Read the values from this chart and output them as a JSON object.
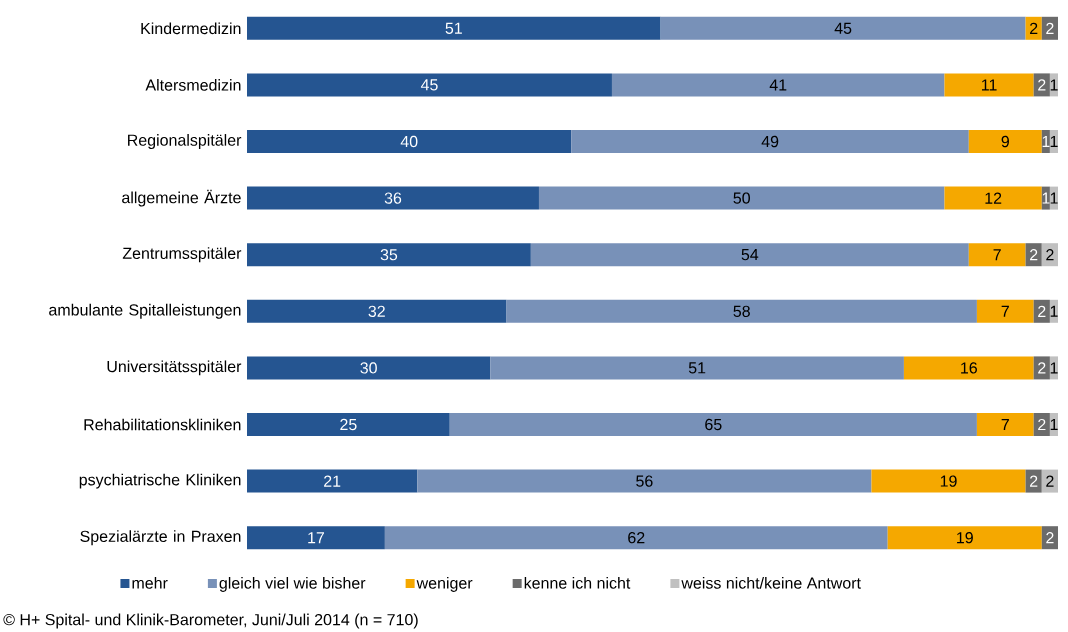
{
  "chart_data": {
    "type": "bar",
    "orientation": "horizontal",
    "stacked": true,
    "data_labels": true,
    "legend": "bottom",
    "tick_labels": "y",
    "categories": [
      "Kindermedizin",
      "Altersmedizin",
      "Regionalspitäler",
      "allgemeine Ärzte",
      "Zentrumsspitäler",
      "ambulante Spitalleistungen",
      "Universitätsspitäler",
      "Rehabilitationskliniken",
      "psychiatrische Kliniken",
      "Spezialärzte in Praxen"
    ],
    "series": [
      {
        "name": "mehr",
        "color": "#255591",
        "values": [
          51,
          45,
          40,
          36,
          35,
          32,
          30,
          25,
          21,
          17
        ]
      },
      {
        "name": "gleich viel wie bisher",
        "color": "#7891b8",
        "values": [
          45,
          41,
          49,
          50,
          54,
          58,
          51,
          65,
          56,
          62
        ]
      },
      {
        "name": "weniger",
        "color": "#f5a800",
        "values": [
          2,
          11,
          9,
          12,
          7,
          7,
          16,
          7,
          19,
          19
        ]
      },
      {
        "name": "kenne ich nicht",
        "color": "#6b6b6b",
        "values": [
          2,
          2,
          1,
          1,
          2,
          2,
          2,
          2,
          2,
          2
        ]
      },
      {
        "name": "weiss nicht/keine Antwort",
        "color": "#c0c0c0",
        "values": [
          null,
          1,
          1,
          1,
          2,
          1,
          1,
          1,
          2,
          null
        ]
      }
    ],
    "annotations": [
      "© H+ Spital- und Klinik-Barometer, Juni/Juli 2014 (n = 710)"
    ]
  }
}
